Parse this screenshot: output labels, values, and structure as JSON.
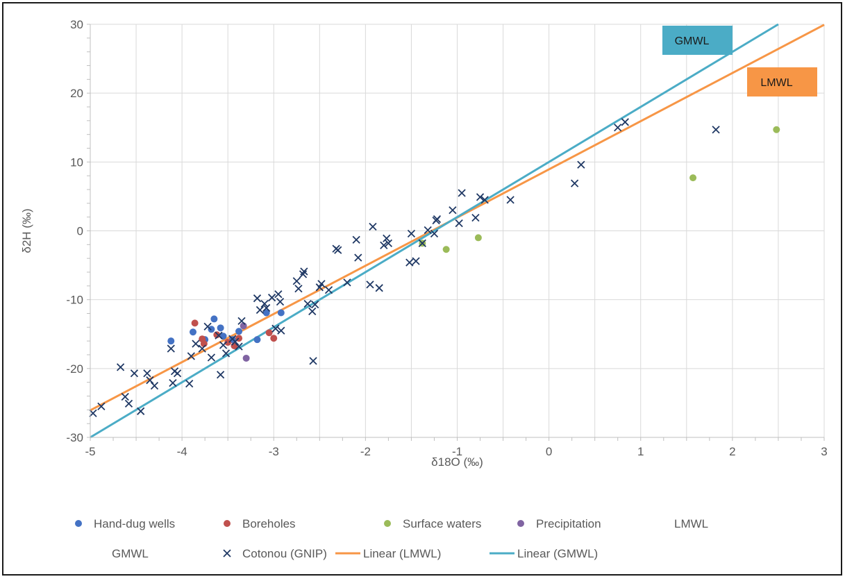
{
  "chart_data": {
    "type": "scatter",
    "xlabel": "δ18O (‰)",
    "ylabel": "δ2H (‰)",
    "xlim": [
      -5,
      3
    ],
    "ylim": [
      -30,
      30
    ],
    "x_ticks": [
      "-5",
      "-4",
      "-3",
      "-2",
      "-1",
      "0",
      "1",
      "2",
      "3"
    ],
    "y_ticks": [
      "-30",
      "-20",
      "-10",
      "0",
      "10",
      "20",
      "30"
    ],
    "grid": true,
    "legend_position": "bottom",
    "series": [
      {
        "name": "Hand-dug wells",
        "marker": "circle",
        "color": "#4472c4",
        "points": [
          [
            -4.12,
            -16.0
          ],
          [
            -3.88,
            -14.7
          ],
          [
            -3.75,
            -15.8
          ],
          [
            -3.68,
            -14.3
          ],
          [
            -3.65,
            -12.8
          ],
          [
            -3.58,
            -14.1
          ],
          [
            -3.55,
            -15.3
          ],
          [
            -3.45,
            -15.8
          ],
          [
            -3.38,
            -14.6
          ],
          [
            -3.18,
            -15.8
          ],
          [
            -3.08,
            -11.9
          ],
          [
            -2.92,
            -11.9
          ]
        ]
      },
      {
        "name": "Boreholes",
        "marker": "circle",
        "color": "#c0504d",
        "points": [
          [
            -3.86,
            -13.4
          ],
          [
            -3.78,
            -15.7
          ],
          [
            -3.76,
            -16.4
          ],
          [
            -3.62,
            -15.1
          ],
          [
            -3.5,
            -16.2
          ],
          [
            -3.43,
            -16.7
          ],
          [
            -3.38,
            -15.6
          ],
          [
            -3.05,
            -14.8
          ],
          [
            -3.0,
            -15.6
          ]
        ]
      },
      {
        "name": "Surface waters",
        "marker": "circle",
        "color": "#9bbb59",
        "points": [
          [
            -1.38,
            -1.8
          ],
          [
            -1.12,
            -2.7
          ],
          [
            -0.77,
            -1.0
          ],
          [
            1.57,
            7.7
          ],
          [
            2.48,
            14.7
          ]
        ]
      },
      {
        "name": "Precipitation",
        "marker": "circle",
        "color": "#8064a2",
        "points": [
          [
            -3.33,
            -13.8
          ],
          [
            -3.3,
            -18.5
          ]
        ]
      },
      {
        "name": "LMWL",
        "marker": "none",
        "color": "#f79646",
        "points": []
      },
      {
        "name": "GMWL",
        "marker": "none",
        "color": "#4bacc6",
        "points": []
      },
      {
        "name": "Cotonou (GNIP)",
        "marker": "x",
        "color": "#1f3864",
        "points": [
          [
            -4.97,
            -26.5
          ],
          [
            -4.88,
            -25.5
          ],
          [
            -4.67,
            -19.8
          ],
          [
            -4.62,
            -24.1
          ],
          [
            -4.58,
            -25.1
          ],
          [
            -4.52,
            -20.7
          ],
          [
            -4.45,
            -26.2
          ],
          [
            -4.38,
            -20.7
          ],
          [
            -4.35,
            -21.7
          ],
          [
            -4.3,
            -22.5
          ],
          [
            -4.12,
            -17.1
          ],
          [
            -4.1,
            -22.1
          ],
          [
            -4.08,
            -20.4
          ],
          [
            -4.05,
            -20.7
          ],
          [
            -3.92,
            -22.2
          ],
          [
            -3.9,
            -18.2
          ],
          [
            -3.85,
            -16.4
          ],
          [
            -3.78,
            -17.1
          ],
          [
            -3.72,
            -13.9
          ],
          [
            -3.68,
            -18.4
          ],
          [
            -3.6,
            -15.2
          ],
          [
            -3.58,
            -20.9
          ],
          [
            -3.55,
            -16.6
          ],
          [
            -3.52,
            -17.8
          ],
          [
            -3.45,
            -15.7
          ],
          [
            -3.42,
            -16.1
          ],
          [
            -3.38,
            -16.8
          ],
          [
            -3.35,
            -13.1
          ],
          [
            -3.18,
            -9.8
          ],
          [
            -3.15,
            -11.5
          ],
          [
            -3.1,
            -10.6
          ],
          [
            -3.08,
            -11.2
          ],
          [
            -3.02,
            -9.7
          ],
          [
            -2.98,
            -14.2
          ],
          [
            -2.95,
            -9.2
          ],
          [
            -2.93,
            -10.3
          ],
          [
            -2.92,
            -14.5
          ],
          [
            -2.75,
            -7.3
          ],
          [
            -2.73,
            -8.4
          ],
          [
            -2.68,
            -6.3
          ],
          [
            -2.67,
            -5.9
          ],
          [
            -2.63,
            -10.6
          ],
          [
            -2.58,
            -11.7
          ],
          [
            -2.57,
            -18.9
          ],
          [
            -2.55,
            -10.7
          ],
          [
            -2.5,
            -8.2
          ],
          [
            -2.48,
            -7.7
          ],
          [
            -2.4,
            -8.6
          ],
          [
            -2.32,
            -2.6
          ],
          [
            -2.3,
            -2.8
          ],
          [
            -2.2,
            -7.5
          ],
          [
            -2.1,
            -1.3
          ],
          [
            -2.08,
            -3.9
          ],
          [
            -1.95,
            -7.8
          ],
          [
            -1.92,
            0.6
          ],
          [
            -1.85,
            -8.3
          ],
          [
            -1.8,
            -2.1
          ],
          [
            -1.77,
            -1.1
          ],
          [
            -1.75,
            -1.8
          ],
          [
            -1.52,
            -4.6
          ],
          [
            -1.5,
            -0.4
          ],
          [
            -1.45,
            -4.4
          ],
          [
            -1.38,
            -1.8
          ],
          [
            -1.32,
            0.1
          ],
          [
            -1.25,
            -0.4
          ],
          [
            -1.23,
            1.5
          ],
          [
            -1.22,
            1.7
          ],
          [
            -1.05,
            3.0
          ],
          [
            -0.98,
            1.1
          ],
          [
            -0.95,
            5.5
          ],
          [
            -0.8,
            1.9
          ],
          [
            -0.75,
            4.9
          ],
          [
            -0.7,
            4.5
          ],
          [
            -0.42,
            4.5
          ],
          [
            0.28,
            6.9
          ],
          [
            0.35,
            9.6
          ],
          [
            0.75,
            15.0
          ],
          [
            0.83,
            15.8
          ],
          [
            1.82,
            14.7
          ]
        ]
      },
      {
        "name": "Linear (LMWL)",
        "marker": "line",
        "color": "#f79646",
        "line": {
          "slope": 7.0,
          "intercept": 8.93,
          "x_range": [
            -5,
            3
          ]
        }
      },
      {
        "name": "Linear (GMWL)",
        "marker": "line",
        "color": "#4bacc6",
        "line": {
          "slope": 8.0,
          "intercept": 10.0,
          "x_range": [
            -5,
            2.5
          ]
        }
      }
    ],
    "annotations": [
      {
        "text": "GMWL",
        "color": "#4bacc6"
      },
      {
        "text": "LMWL",
        "color": "#f79646"
      }
    ]
  }
}
